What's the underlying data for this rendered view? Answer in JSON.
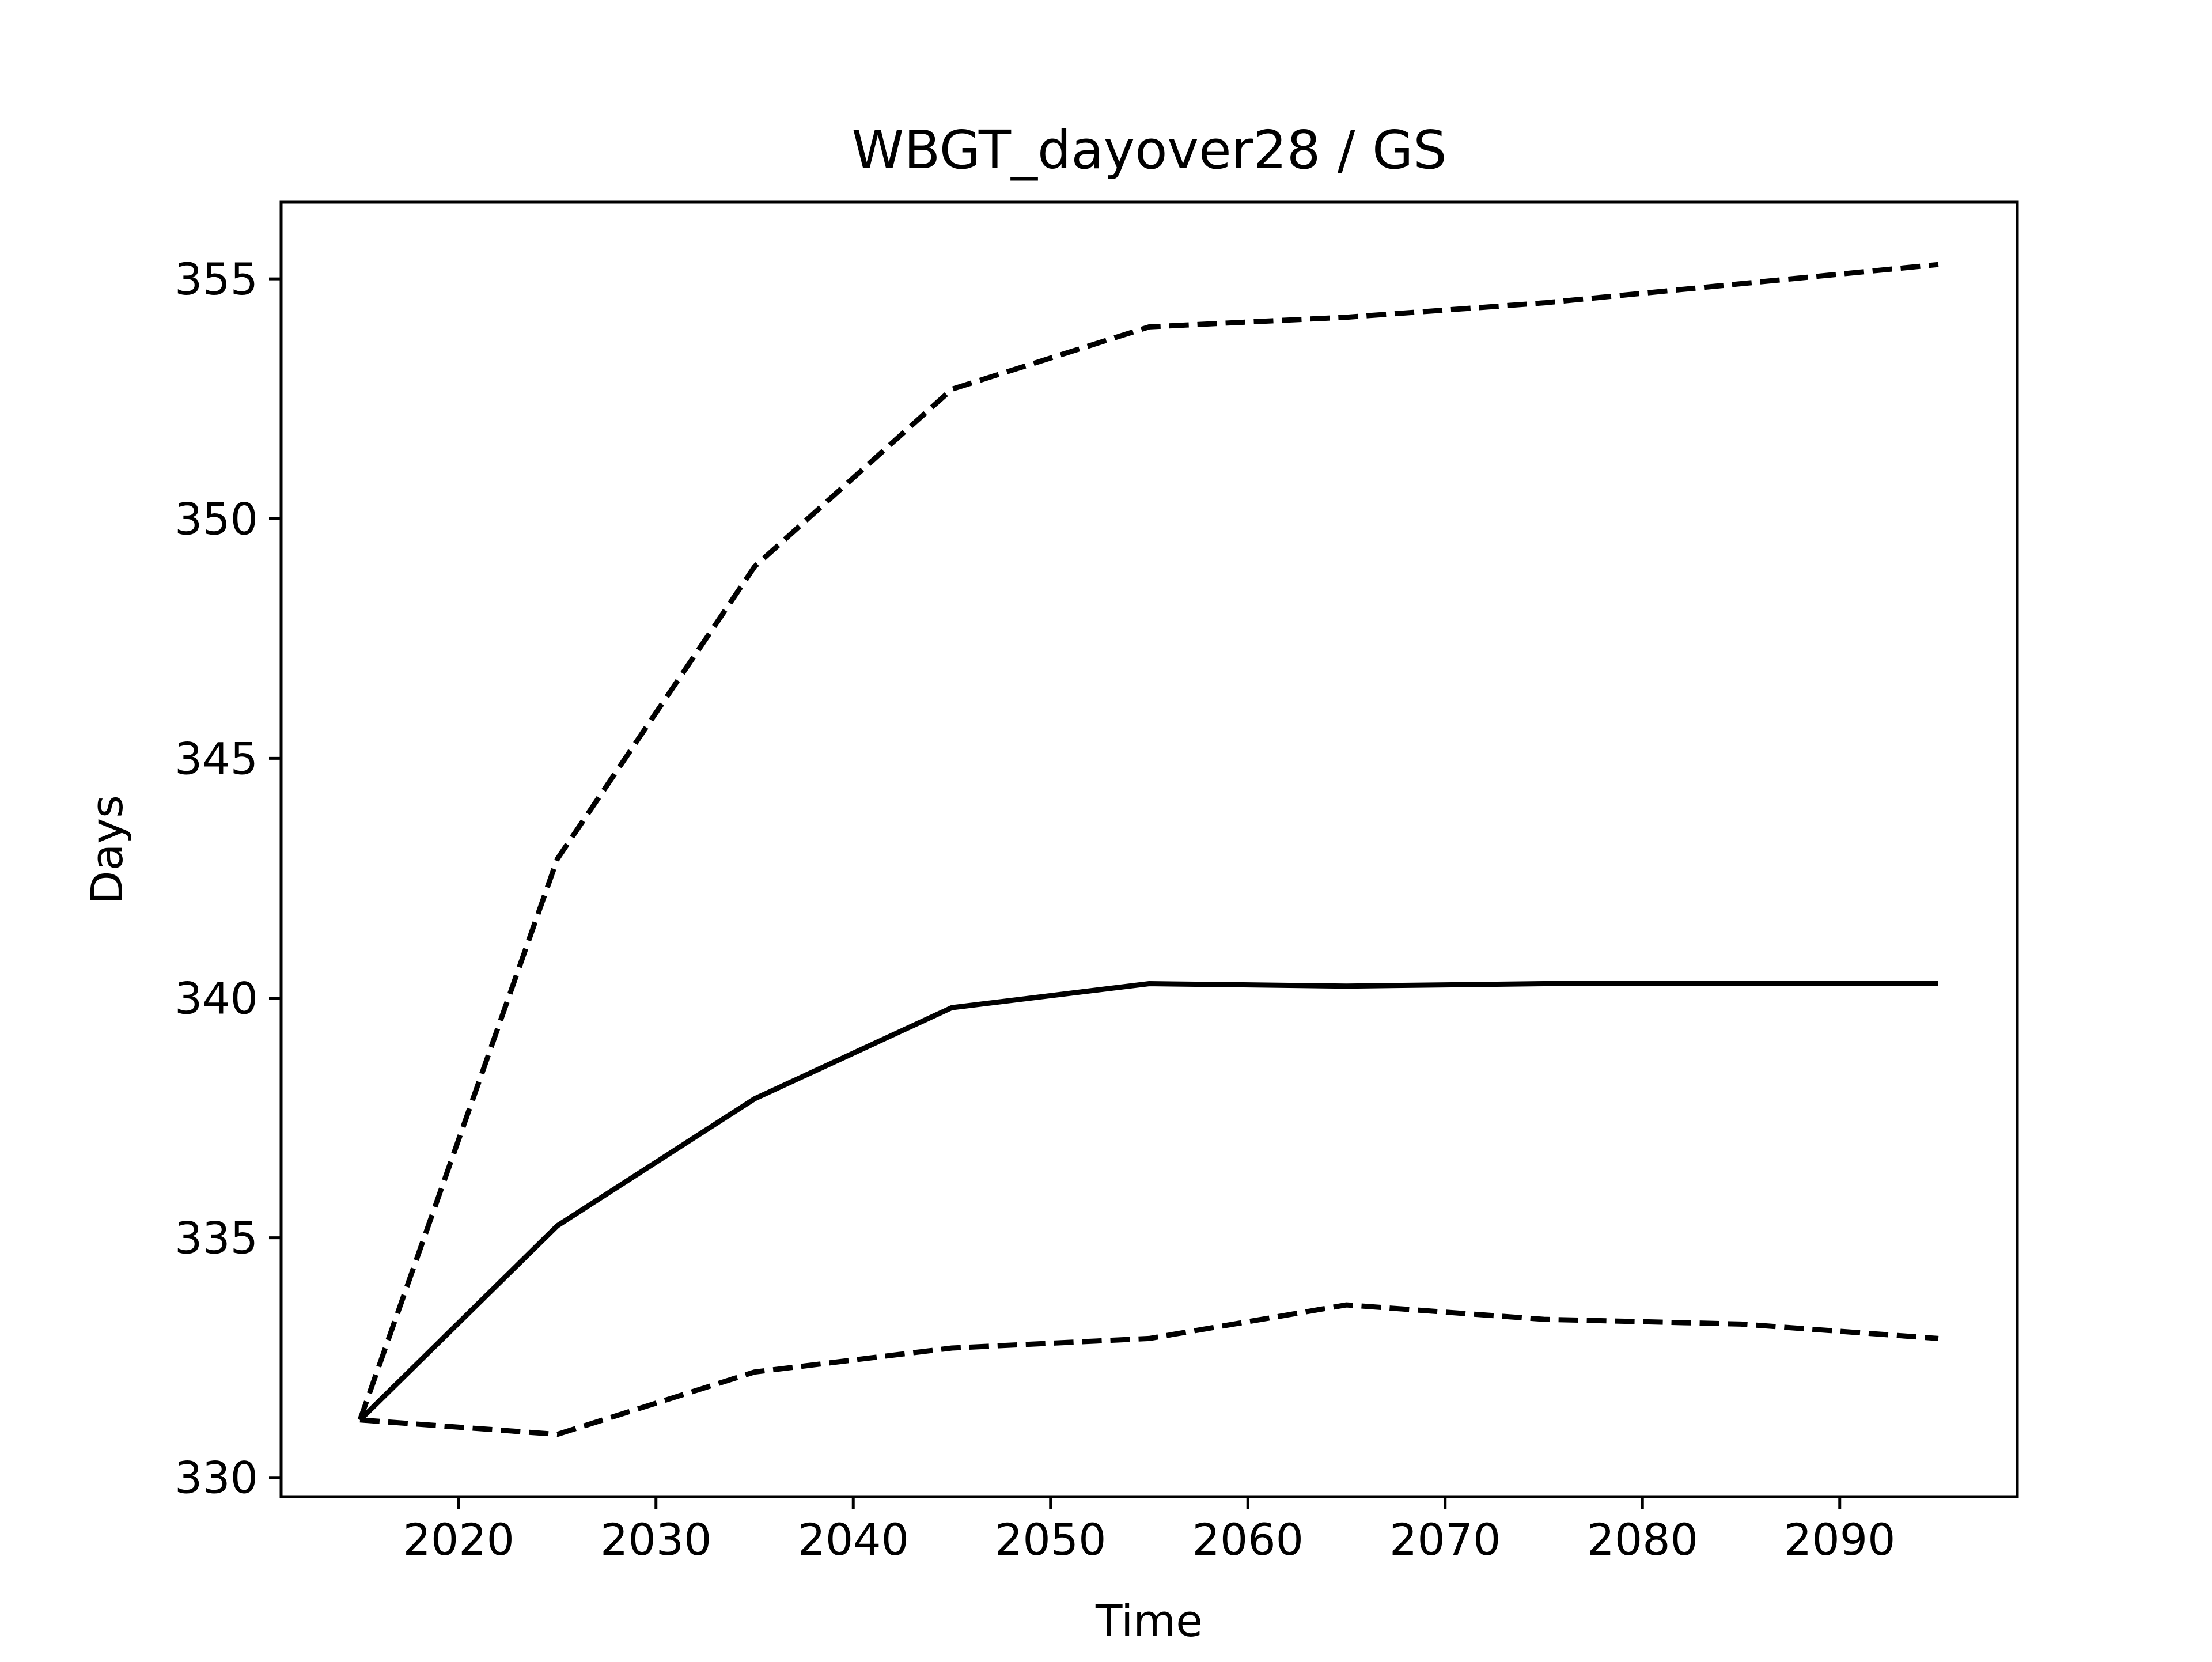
{
  "chart_data": {
    "type": "line",
    "title": "WBGT_dayover28 / GS",
    "xlabel": "Time",
    "ylabel": "Days",
    "xlim": [
      2011,
      2099
    ],
    "ylim": [
      329.6,
      356.6
    ],
    "xticks": [
      2020,
      2030,
      2040,
      2050,
      2060,
      2070,
      2080,
      2090
    ],
    "yticks": [
      330,
      335,
      340,
      345,
      350,
      355
    ],
    "grid": false,
    "x": [
      2015,
      2025,
      2035,
      2045,
      2055,
      2065,
      2075,
      2085,
      2095
    ],
    "series": [
      {
        "style": "dashed",
        "color": "#000000",
        "values": [
          331.2,
          342.9,
          349.0,
          352.7,
          354.0,
          354.2,
          354.5,
          354.9,
          355.3
        ]
      },
      {
        "style": "solid",
        "color": "#000000",
        "values": [
          331.2,
          335.25,
          337.9,
          339.8,
          340.3,
          340.25,
          340.3,
          340.3,
          340.3
        ]
      },
      {
        "style": "dashed",
        "color": "#000000",
        "values": [
          331.2,
          330.9,
          332.2,
          332.7,
          332.9,
          333.6,
          333.3,
          333.2,
          332.9
        ]
      }
    ]
  }
}
